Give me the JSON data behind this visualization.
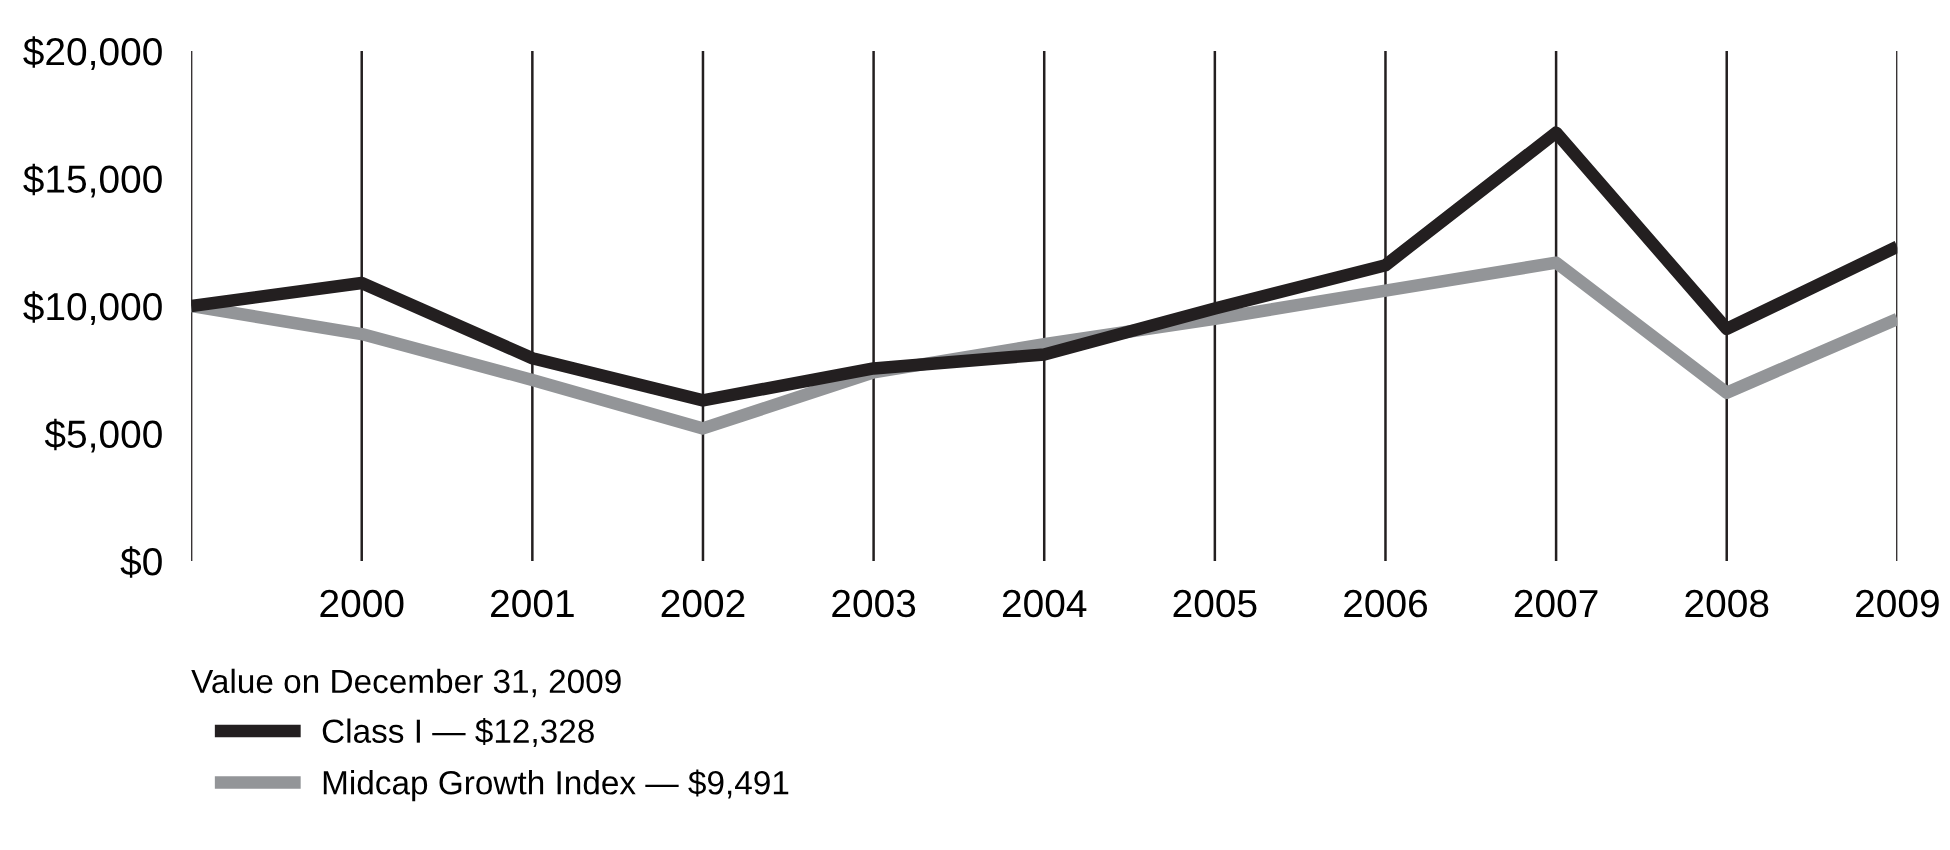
{
  "chart_data": {
    "type": "line",
    "categories": [
      null,
      "2000",
      "2001",
      "2002",
      "2003",
      "2004",
      "2005",
      "2006",
      "2007",
      "2008",
      "2009"
    ],
    "series": [
      {
        "name": "Class I — $12,328",
        "color": "#231f20",
        "values": [
          10000,
          10900,
          7950,
          6300,
          7550,
          8100,
          9900,
          11600,
          16800,
          9100,
          12328
        ]
      },
      {
        "name": "Midcap Growth Index — $9,491",
        "color": "#939598",
        "values": [
          10000,
          8900,
          7100,
          5200,
          7400,
          8500,
          9500,
          10600,
          11700,
          6600,
          9491
        ]
      }
    ],
    "ylim": [
      0,
      20000
    ],
    "yticks": [
      {
        "value": 0,
        "label": "$0"
      },
      {
        "value": 5000,
        "label": "$5,000"
      },
      {
        "value": 10000,
        "label": "$10,000"
      },
      {
        "value": 15000,
        "label": "$15,000"
      },
      {
        "value": 20000,
        "label": "$20,000"
      }
    ],
    "grid": "x",
    "legend": "bottom",
    "legend_title": "Value on December 31, 2009",
    "marker": "none",
    "line_style": "solid"
  }
}
